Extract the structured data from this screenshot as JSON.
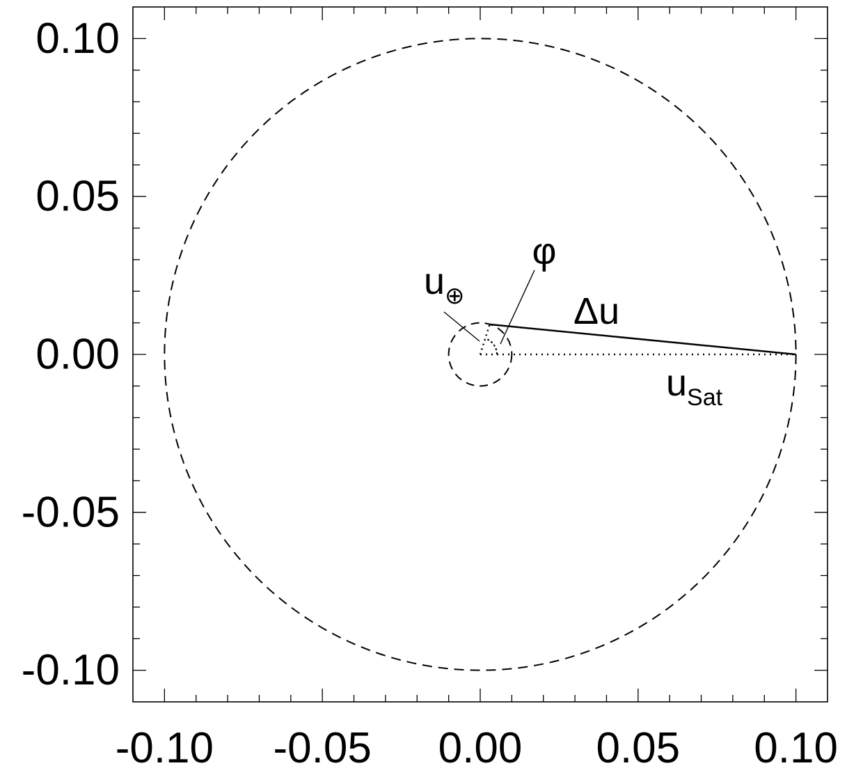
{
  "chart_data": {
    "type": "scatter",
    "title": "",
    "xlabel": "",
    "ylabel": "",
    "xlim": [
      -0.11,
      0.11
    ],
    "ylim": [
      -0.11,
      0.11
    ],
    "x_ticks": [
      -0.1,
      -0.05,
      0.0,
      0.05,
      0.1
    ],
    "x_tick_labels": [
      "-0.10",
      "-0.05",
      "0.00",
      "0.05",
      "0.10"
    ],
    "y_ticks": [
      -0.1,
      -0.05,
      0.0,
      0.05,
      0.1
    ],
    "y_tick_labels": [
      "-0.10",
      "-0.05",
      "0.00",
      "0.05",
      "0.10"
    ],
    "minor_tick_step": 0.01,
    "grid": false,
    "shapes": {
      "outer_circle": {
        "center": [
          0,
          0
        ],
        "radius": 0.1,
        "style": "dashed"
      },
      "inner_circle": {
        "center": [
          0,
          0
        ],
        "radius": 0.01,
        "style": "dashed"
      },
      "u_earth_vector": {
        "from": [
          0,
          0
        ],
        "to": [
          0.003,
          0.0095
        ],
        "style": "dotted"
      },
      "u_sat_vector": {
        "from": [
          0,
          0
        ],
        "to": [
          0.1,
          0.0
        ],
        "style": "dotted"
      },
      "delta_u_segment": {
        "from": [
          0.003,
          0.0095
        ],
        "to": [
          0.1,
          0.0
        ],
        "style": "solid"
      }
    },
    "annotations": {
      "phi": {
        "text": "φ"
      },
      "delta_u": {
        "text": "Δu"
      },
      "u_earth": {
        "text": "u",
        "subscript": "⊕"
      },
      "u_sat": {
        "text": "u",
        "subscript": "Sat"
      }
    }
  }
}
